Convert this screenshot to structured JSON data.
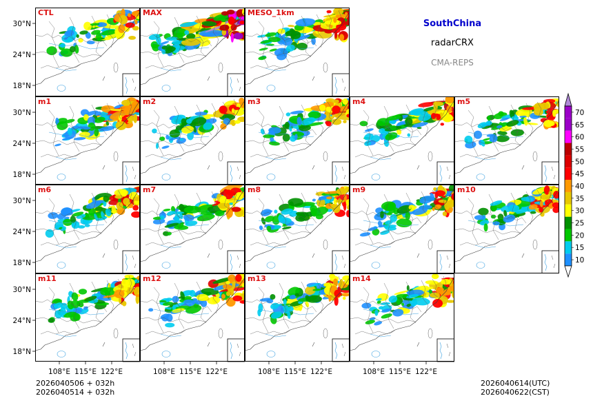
{
  "header": {
    "region": "SouthChina",
    "product": "radarCRX",
    "system": "CMA-REPS",
    "region_color": "#0000cc",
    "system_color": "#888888"
  },
  "panels": [
    {
      "label": "CTL",
      "intensity": 0.9
    },
    {
      "label": "MAX",
      "intensity": 1.8
    },
    {
      "label": "MESO_1km",
      "intensity": 1.3
    },
    {
      "label": "m1",
      "intensity": 1.0
    },
    {
      "label": "m2",
      "intensity": 0.95
    },
    {
      "label": "m3",
      "intensity": 1.05
    },
    {
      "label": "m4",
      "intensity": 1.0
    },
    {
      "label": "m5",
      "intensity": 0.9
    },
    {
      "label": "m6",
      "intensity": 1.0
    },
    {
      "label": "m7",
      "intensity": 1.1
    },
    {
      "label": "m8",
      "intensity": 0.95
    },
    {
      "label": "m9",
      "intensity": 1.0
    },
    {
      "label": "m10",
      "intensity": 1.0
    },
    {
      "label": "m11",
      "intensity": 1.0
    },
    {
      "label": "m12",
      "intensity": 1.0
    },
    {
      "label": "m13",
      "intensity": 1.0
    },
    {
      "label": "m14",
      "intensity": 1.0
    }
  ],
  "panel_label_color": "#dd1111",
  "lat_ticks": [
    "30°N",
    "24°N",
    "18°N"
  ],
  "lon_ticks": [
    "108°E",
    "115°E",
    "122°E"
  ],
  "colorbar": {
    "levels": [
      "10",
      "15",
      "20",
      "25",
      "30",
      "35",
      "40",
      "45",
      "50",
      "55",
      "60",
      "65",
      "70"
    ],
    "colors": [
      "#1e90ff",
      "#00ccee",
      "#00c800",
      "#009000",
      "#ffff00",
      "#e8c800",
      "#ff9900",
      "#ff0000",
      "#dd0000",
      "#bb0000",
      "#ff00ff",
      "#9b00c8",
      "#b08ad8"
    ]
  },
  "footer": {
    "init_line1": "2026040506  +  032h",
    "init_line2": "2026040514  +  032h",
    "valid_utc": "2026040614(UTC)",
    "valid_cst": "2026040622(CST)"
  }
}
